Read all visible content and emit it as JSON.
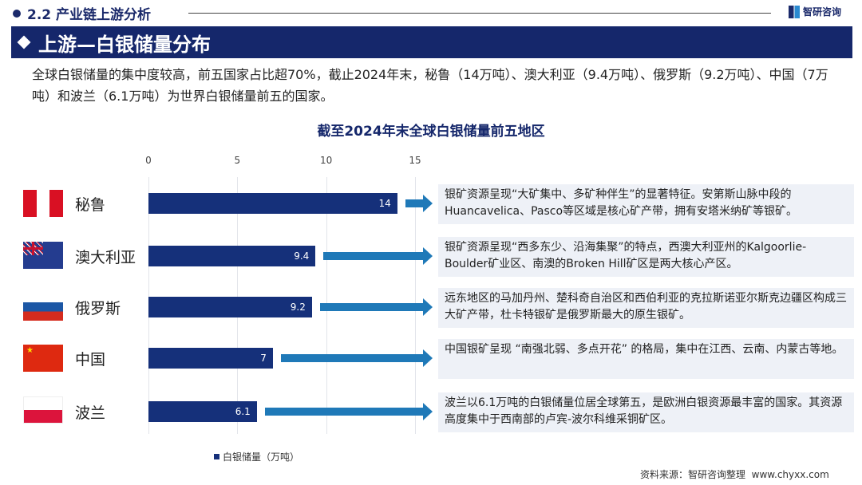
{
  "header": {
    "section": "2.2 产业链上游分析",
    "logo_text": "智研咨询",
    "banner_title": "上游—白银储量分布"
  },
  "intro": "全球白银储量的集中度较高，前五国家占比超70%，截止2024年末，秘鲁（14万吨）、澳大利亚（9.4万吨）、俄罗斯（9.2万吨）、中国（7万吨）和波兰（6.1万吨）为世界白银储量前五的国家。",
  "chart_data": {
    "type": "bar",
    "orientation": "horizontal",
    "title": "截至2024年末全球白银储量前五地区",
    "categories": [
      "秘鲁",
      "澳大利亚",
      "俄罗斯",
      "中国",
      "波兰"
    ],
    "values": [
      14,
      9.4,
      9.2,
      7,
      6.1
    ],
    "value_labels": [
      "14",
      "9.4",
      "9.2",
      "7",
      "6.1"
    ],
    "xlim": [
      0,
      15
    ],
    "ticks": [
      "0",
      "5",
      "10",
      "15"
    ],
    "legend": "白银储量（万吨）",
    "legend_position": "bottom-left",
    "grid": true,
    "bar_color": "#15307a"
  },
  "notes": [
    "银矿资源呈现“大矿集中、多矿种伴生”的显著特征。安第斯山脉中段的Huancavelica、Pasco等区域是核心矿产带，拥有安塔米纳矿等银矿。",
    "银矿资源呈现“西多东少、沿海集聚”的特点，西澳大利亚州的Kalgoorlie-Boulder矿业区、南澳的Broken Hill矿区是两大核心产区。",
    "远东地区的马加丹州、楚科奇自治区和西伯利亚的克拉斯诺亚尔斯克边疆区构成三大矿产带，杜卡特银矿是俄罗斯最大的原生银矿。",
    "中国银矿呈现 “南强北弱、多点开花” 的格局，集中在江西、云南、内蒙古等地。",
    "波兰以6.1万吨的白银储量位居全球第五，是欧洲白银资源最丰富的国家。其资源高度集中于西南部的卢宾-波尔科维采铜矿区。"
  ],
  "footer": {
    "source": "资料来源：智研咨询整理",
    "url": "www.chyxx.com"
  }
}
